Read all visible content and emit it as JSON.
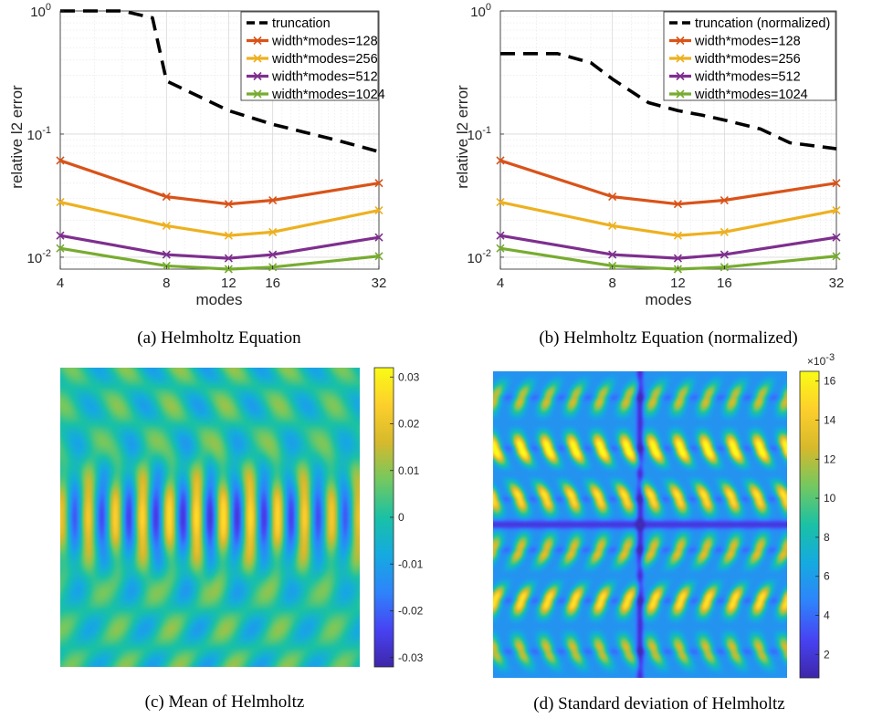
{
  "colormap": [
    "#3e26a8",
    "#4743f3",
    "#2e84fb",
    "#15aae0",
    "#1ac1a5",
    "#73c860",
    "#d6b92c",
    "#fdcf2c",
    "#f9fb15"
  ],
  "chart_data": [
    {
      "type": "line",
      "caption": "(a) Helmholtz Equation",
      "xlabel": "modes",
      "ylabel": "relative l2 error",
      "xscale": "log",
      "yscale": "log",
      "xlim": [
        4,
        32
      ],
      "ylim": [
        0.008,
        1
      ],
      "xticks": [
        4,
        8,
        12,
        16,
        32
      ],
      "xtick_labels": [
        "4",
        "8",
        "12",
        "16",
        "32"
      ],
      "yticks": [
        0.01,
        0.1,
        1
      ],
      "ytick_bases": [
        "10",
        "10",
        "10"
      ],
      "ytick_exps": [
        "-2",
        "-1",
        "0"
      ],
      "grid": true,
      "legend_position": "top-right",
      "series": [
        {
          "name": "truncation",
          "color": "#000000",
          "style": "dashed",
          "x": [
            4,
            6,
            7.3,
            8,
            12,
            16,
            24,
            32
          ],
          "y": [
            1.0,
            1.0,
            0.88,
            0.27,
            0.155,
            0.12,
            0.09,
            0.072
          ]
        },
        {
          "name": "width*modes=128",
          "color": "#d95319",
          "style": "solid",
          "x": [
            4,
            8,
            12,
            16,
            32
          ],
          "y": [
            0.061,
            0.031,
            0.027,
            0.029,
            0.04
          ]
        },
        {
          "name": "width*modes=256",
          "color": "#edb120",
          "style": "solid",
          "x": [
            4,
            8,
            12,
            16,
            32
          ],
          "y": [
            0.028,
            0.018,
            0.015,
            0.016,
            0.024
          ]
        },
        {
          "name": "width*modes=512",
          "color": "#7e2f8e",
          "style": "solid",
          "x": [
            4,
            8,
            12,
            16,
            32
          ],
          "y": [
            0.015,
            0.0105,
            0.0098,
            0.0105,
            0.0145
          ]
        },
        {
          "name": "width*modes=1024",
          "color": "#77ac30",
          "style": "solid",
          "x": [
            4,
            8,
            12,
            16,
            32
          ],
          "y": [
            0.0118,
            0.0085,
            0.008,
            0.0083,
            0.0102
          ]
        }
      ]
    },
    {
      "type": "line",
      "caption": "(b) Helmholtz Equation (normalized)",
      "xlabel": "modes",
      "ylabel": "relative l2 error",
      "xscale": "log",
      "yscale": "log",
      "xlim": [
        4,
        32
      ],
      "ylim": [
        0.008,
        1
      ],
      "xticks": [
        4,
        8,
        12,
        16,
        32
      ],
      "xtick_labels": [
        "4",
        "8",
        "12",
        "16",
        "32"
      ],
      "yticks": [
        0.01,
        0.1,
        1
      ],
      "ytick_bases": [
        "10",
        "10",
        "10"
      ],
      "ytick_exps": [
        "-2",
        "-1",
        "0"
      ],
      "grid": true,
      "legend_position": "top-right",
      "series": [
        {
          "name": "truncation (normalized)",
          "color": "#000000",
          "style": "dashed",
          "x": [
            4,
            5.7,
            7,
            8,
            10,
            12,
            14,
            16,
            20,
            24,
            32
          ],
          "y": [
            0.45,
            0.45,
            0.38,
            0.28,
            0.18,
            0.155,
            0.142,
            0.13,
            0.11,
            0.085,
            0.076
          ]
        },
        {
          "name": "width*modes=128",
          "color": "#d95319",
          "style": "solid",
          "x": [
            4,
            8,
            12,
            16,
            32
          ],
          "y": [
            0.061,
            0.031,
            0.027,
            0.029,
            0.04
          ]
        },
        {
          "name": "width*modes=256",
          "color": "#edb120",
          "style": "solid",
          "x": [
            4,
            8,
            12,
            16,
            32
          ],
          "y": [
            0.028,
            0.018,
            0.015,
            0.016,
            0.024
          ]
        },
        {
          "name": "width*modes=512",
          "color": "#7e2f8e",
          "style": "solid",
          "x": [
            4,
            8,
            12,
            16,
            32
          ],
          "y": [
            0.015,
            0.0105,
            0.0098,
            0.0105,
            0.0145
          ]
        },
        {
          "name": "width*modes=1024",
          "color": "#77ac30",
          "style": "solid",
          "x": [
            4,
            8,
            12,
            16,
            32
          ],
          "y": [
            0.0118,
            0.0085,
            0.008,
            0.0083,
            0.0102
          ]
        }
      ]
    },
    {
      "type": "heatmap",
      "caption": "(c) Mean of Helmholtz",
      "colorbar_range": [
        -0.032,
        0.032
      ],
      "colorbar_ticks": [
        -0.03,
        -0.02,
        -0.01,
        0,
        0.01,
        0.02,
        0.03
      ],
      "colorbar_tick_labels": [
        "-0.03",
        "-0.02",
        "-0.01",
        "0",
        "0.01",
        "0.02",
        "0.03"
      ]
    },
    {
      "type": "heatmap",
      "caption": "(d) Standard deviation of Helmholtz",
      "colorbar_range": [
        0.0008,
        0.0165
      ],
      "colorbar_ticks": [
        2,
        4,
        6,
        8,
        10,
        12,
        14,
        16
      ],
      "colorbar_tick_labels": [
        "2",
        "4",
        "6",
        "8",
        "10",
        "12",
        "14",
        "16"
      ],
      "colorbar_multiplier_base": "×10",
      "colorbar_multiplier_exp": "-3"
    }
  ]
}
